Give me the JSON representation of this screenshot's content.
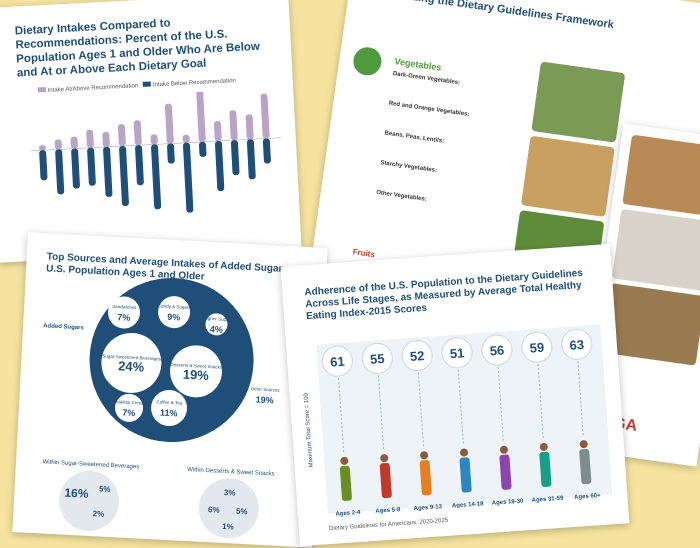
{
  "page1": {
    "title": "Dietary Intakes Compared to Recommendations: Percent of the U.S. Population Ages 1 and Older Who Are Below and At or Above Each Dietary Goal",
    "legend": [
      "Intake At/Above Recommendation",
      "Intake Below Recommendation"
    ]
  },
  "page2": {
    "title": "Customizing the Dietary Guidelines Framework",
    "section": "Vegetables",
    "items": [
      "Dark-Green Vegetables:",
      "Red and Orange Vegetables:",
      "Beans, Peas, Lentils:",
      "Starchy Vegetables:",
      "Other Vegetables:"
    ],
    "next": "Fruits"
  },
  "page3": {
    "title": "Top Sources and Average Intakes of Added Sugars: U.S. Population Ages 1 and Older",
    "side_label": "Added Sugars",
    "bubbles": [
      {
        "name": "Sandwiches",
        "value": "7%"
      },
      {
        "name": "Candy & Sugars",
        "value": "9%"
      },
      {
        "name": "Higher Sugar",
        "value": "4%"
      },
      {
        "name": "Sugar-Sweetened Beverages",
        "value": "24%"
      },
      {
        "name": "Desserts & Sweet Snacks",
        "value": "19%"
      },
      {
        "name": "Coffee & Tea",
        "value": "11%"
      },
      {
        "name": "Breakfast Cereals",
        "value": "7%"
      },
      {
        "name": "Other Sources",
        "value": "19%"
      }
    ],
    "sub1": "Within Sugar-Sweetened Beverages",
    "sub2": "Within Desserts & Sweet Snacks",
    "sub1_values": [
      "16%",
      "5%",
      "2%"
    ],
    "sub2_values": [
      "3%",
      "6%",
      "5%",
      "1%"
    ]
  },
  "page4": {
    "title": "Adherence of the U.S. Population to the Dietary Guidelines Across Life Stages, as Measured by Average Total Healthy Eating Index-2015 Scores",
    "axis_label": "Maximum Total Score = 100",
    "scores": [
      "61",
      "55",
      "52",
      "51",
      "56",
      "59",
      "63"
    ],
    "ages": [
      "Ages 2-4",
      "Ages 5-8",
      "Ages 9-13",
      "Ages 14-18",
      "Ages 19-30",
      "Ages 31-59",
      "Ages 60+"
    ],
    "footer": "Dietary Guidelines for Americans, 2020-2025",
    "logo": "DGA"
  }
}
